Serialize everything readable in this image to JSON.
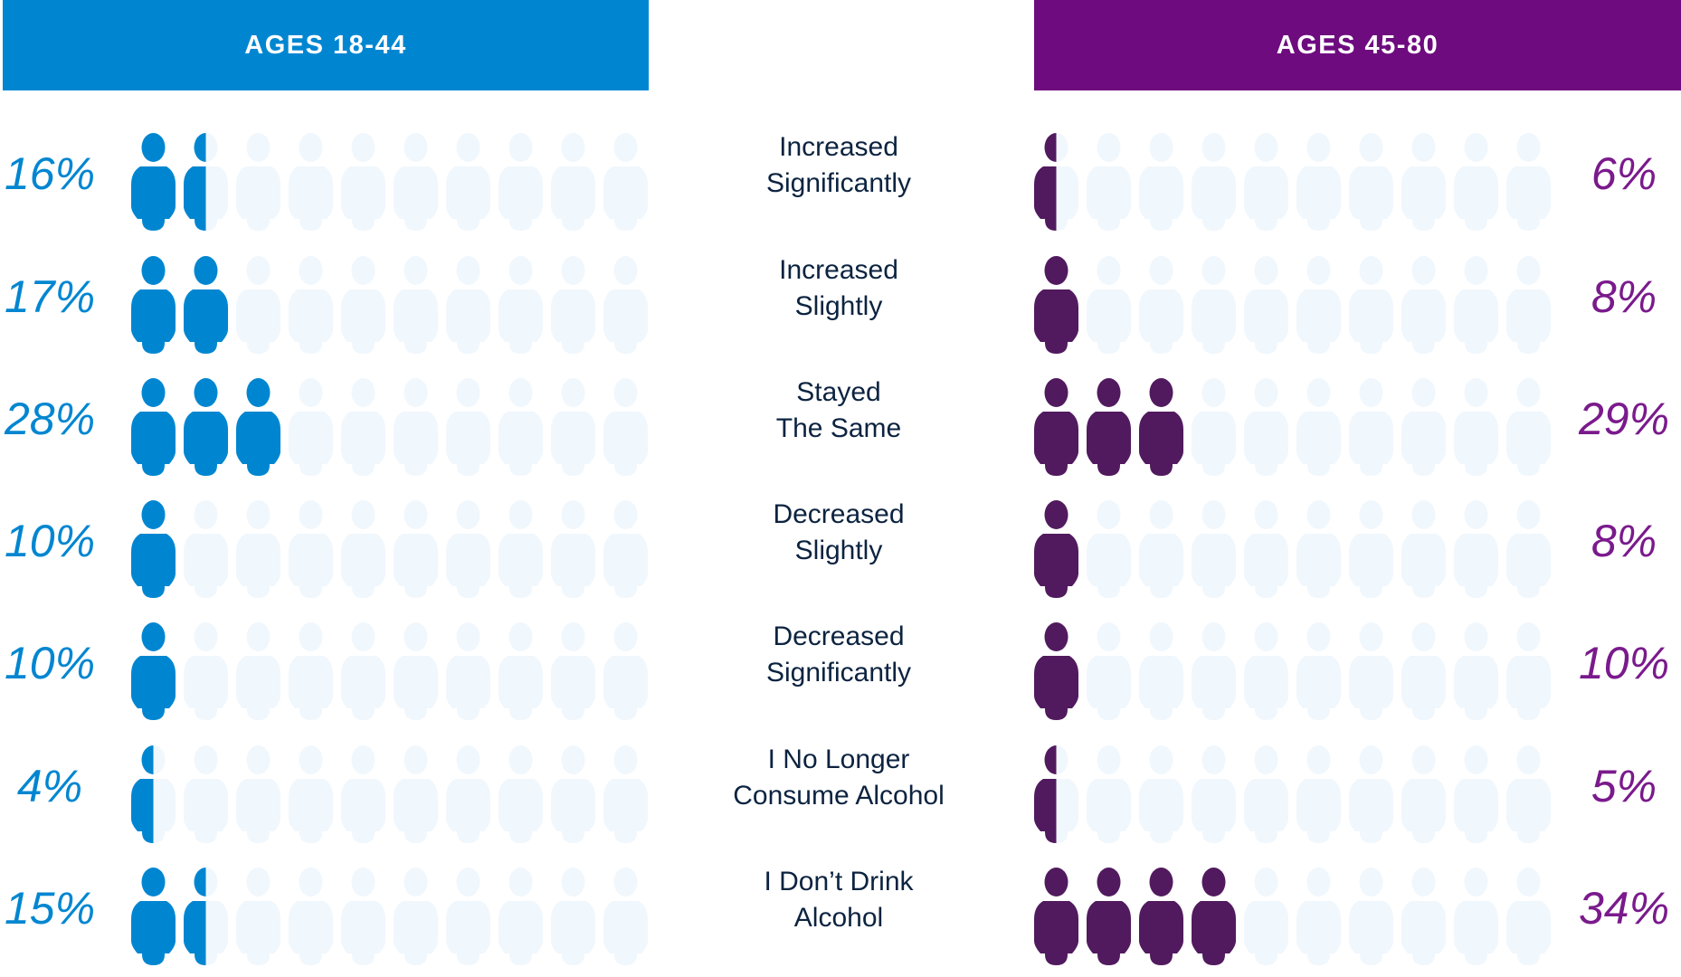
{
  "headers": {
    "left": "AGES 18-44",
    "right": "AGES 45-80"
  },
  "colors": {
    "left": "#0086d1",
    "right_header": "#6e0b7f",
    "right_icon": "#511a5e",
    "right_text": "#7a1a8c",
    "empty": "#f0f7fd",
    "label": "#0c2340"
  },
  "chart_data": {
    "type": "pictograph",
    "icons_per_row": 10,
    "series": [
      {
        "name": "AGES 18-44"
      },
      {
        "name": "AGES 45-80"
      }
    ],
    "rows": [
      {
        "label_1": "Increased",
        "label_2": "Significantly",
        "left": {
          "pct": "16%",
          "value": 16,
          "icons_filled": 1.5
        },
        "right": {
          "pct": "6%",
          "value": 6,
          "icons_filled": 0.5
        }
      },
      {
        "label_1": "Increased",
        "label_2": "Slightly",
        "left": {
          "pct": "17%",
          "value": 17,
          "icons_filled": 2
        },
        "right": {
          "pct": "8%",
          "value": 8,
          "icons_filled": 1
        }
      },
      {
        "label_1": "Stayed",
        "label_2": "The Same",
        "left": {
          "pct": "28%",
          "value": 28,
          "icons_filled": 3
        },
        "right": {
          "pct": "29%",
          "value": 29,
          "icons_filled": 3
        }
      },
      {
        "label_1": "Decreased",
        "label_2": "Slightly",
        "left": {
          "pct": "10%",
          "value": 10,
          "icons_filled": 1
        },
        "right": {
          "pct": "8%",
          "value": 8,
          "icons_filled": 1
        }
      },
      {
        "label_1": "Decreased",
        "label_2": "Significantly",
        "left": {
          "pct": "10%",
          "value": 10,
          "icons_filled": 1
        },
        "right": {
          "pct": "10%",
          "value": 10,
          "icons_filled": 1
        }
      },
      {
        "label_1": "I No Longer",
        "label_2": "Consume Alcohol",
        "left": {
          "pct": "4%",
          "value": 4,
          "icons_filled": 0.5
        },
        "right": {
          "pct": "5%",
          "value": 5,
          "icons_filled": 0.5
        }
      },
      {
        "label_1": "I Don’t Drink",
        "label_2": "Alcohol",
        "left": {
          "pct": "15%",
          "value": 15,
          "icons_filled": 1.5
        },
        "right": {
          "pct": "34%",
          "value": 34,
          "icons_filled": 4
        }
      }
    ]
  }
}
